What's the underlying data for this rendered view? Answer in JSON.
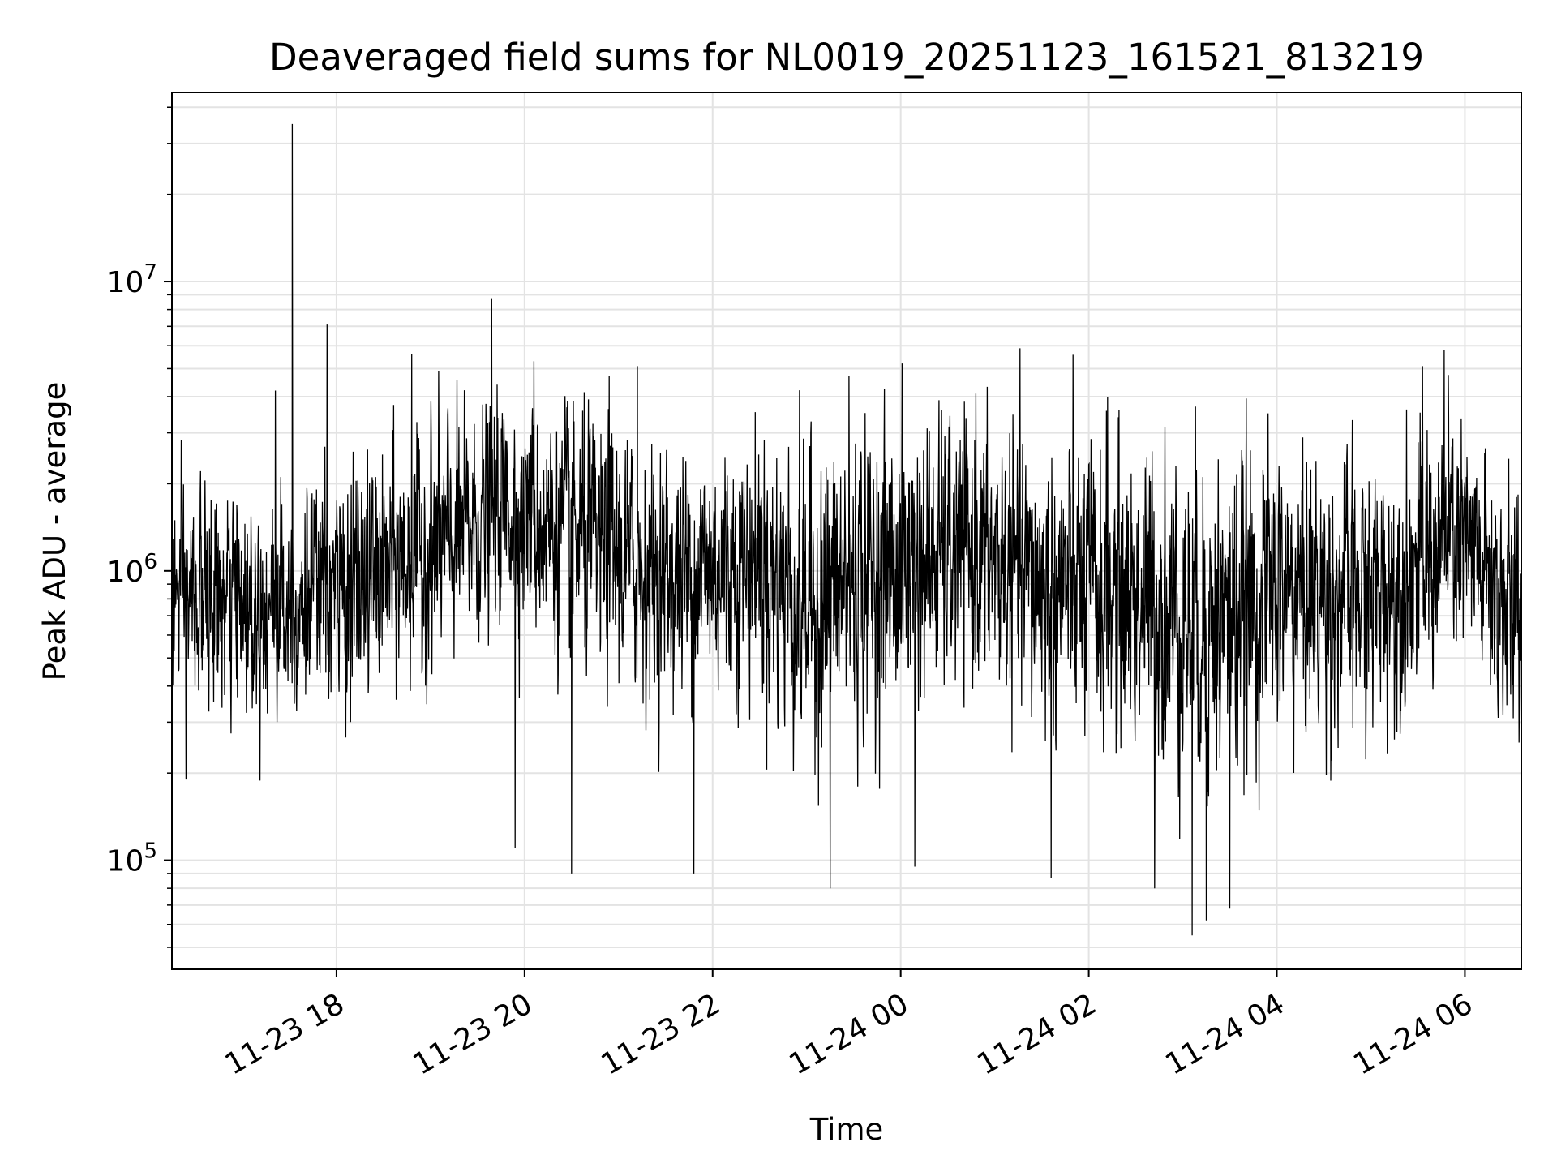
{
  "chart_data": {
    "type": "line",
    "title": "Deaveraged field sums for NL0019_20251123_161521_813219",
    "xlabel": "Time",
    "ylabel": "Peak ADU - average",
    "yscale": "log",
    "ylim": [
      42000,
      45000000
    ],
    "xlim_hours": [
      16.25,
      6.6
    ],
    "grid": true,
    "line_color": "#000000",
    "x_ticks": [
      {
        "label": "11-23 18",
        "hour": 18
      },
      {
        "label": "11-23 20",
        "hour": 20
      },
      {
        "label": "11-23 22",
        "hour": 22
      },
      {
        "label": "11-24 00",
        "hour": 24
      },
      {
        "label": "11-24 02",
        "hour": 26
      },
      {
        "label": "11-24 04",
        "hour": 28
      },
      {
        "label": "11-24 06",
        "hour": 30
      }
    ],
    "y_ticks": [
      {
        "base": "10",
        "exp": "5",
        "value": 100000
      },
      {
        "base": "10",
        "exp": "6",
        "value": 1000000
      },
      {
        "base": "10",
        "exp": "7",
        "value": 10000000
      }
    ],
    "series": [
      {
        "name": "Peak ADU - average",
        "envelope": [
          {
            "hour": 16.25,
            "median": 800000,
            "spread": 2.0
          },
          {
            "hour": 17.0,
            "median": 750000,
            "spread": 2.0
          },
          {
            "hour": 18.0,
            "median": 850000,
            "spread": 2.1
          },
          {
            "hour": 19.0,
            "median": 1150000,
            "spread": 2.2
          },
          {
            "hour": 19.8,
            "median": 1700000,
            "spread": 2.0
          },
          {
            "hour": 20.5,
            "median": 1300000,
            "spread": 2.3
          },
          {
            "hour": 21.5,
            "median": 950000,
            "spread": 2.2
          },
          {
            "hour": 22.5,
            "median": 1100000,
            "spread": 2.4
          },
          {
            "hour": 23.0,
            "median": 750000,
            "spread": 2.8
          },
          {
            "hour": 23.7,
            "median": 1000000,
            "spread": 2.6
          },
          {
            "hour": 24.7,
            "median": 1150000,
            "spread": 2.3
          },
          {
            "hour": 25.5,
            "median": 900000,
            "spread": 2.5
          },
          {
            "hour": 26.5,
            "median": 800000,
            "spread": 2.7
          },
          {
            "hour": 27.3,
            "median": 650000,
            "spread": 3.0
          },
          {
            "hour": 28.0,
            "median": 850000,
            "spread": 2.5
          },
          {
            "hour": 29.0,
            "median": 800000,
            "spread": 2.4
          },
          {
            "hour": 29.9,
            "median": 1300000,
            "spread": 2.2
          },
          {
            "hour": 30.6,
            "median": 650000,
            "spread": 2.3
          }
        ],
        "spikes": [
          {
            "hour": 17.53,
            "value": 35000000
          },
          {
            "hour": 19.65,
            "value": 8700000
          },
          {
            "hour": 17.9,
            "value": 7100000
          },
          {
            "hour": 18.8,
            "value": 5600000
          },
          {
            "hour": 20.1,
            "value": 5300000
          },
          {
            "hour": 29.78,
            "value": 5800000
          },
          {
            "hour": 29.55,
            "value": 5100000
          },
          {
            "hour": 23.45,
            "value": 4700000
          },
          {
            "hour": 20.9,
            "value": 4700000
          },
          {
            "hour": 24.8,
            "value": 4100000
          },
          {
            "hour": 17.35,
            "value": 4200000
          },
          {
            "hour": 21.2,
            "value": 5100000
          },
          {
            "hour": 26.2,
            "value": 4000000
          },
          {
            "hour": 27.1,
            "value": 55000
          },
          {
            "hour": 27.5,
            "value": 68000
          },
          {
            "hour": 27.25,
            "value": 62000
          },
          {
            "hour": 23.25,
            "value": 80000
          },
          {
            "hour": 25.6,
            "value": 87000
          },
          {
            "hour": 20.5,
            "value": 90000
          },
          {
            "hour": 21.8,
            "value": 90000
          },
          {
            "hour": 24.15,
            "value": 95000
          },
          {
            "hour": 26.7,
            "value": 80000
          },
          {
            "hour": 19.9,
            "value": 110000
          },
          {
            "hour": 16.4,
            "value": 190000
          }
        ]
      }
    ]
  }
}
